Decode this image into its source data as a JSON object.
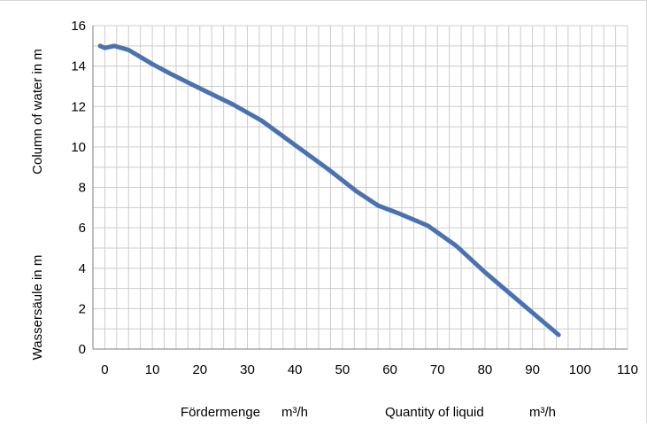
{
  "chart_data": {
    "type": "line",
    "title": "",
    "xlabel_de": "Fördermenge",
    "xlabel_de_unit": "m³/h",
    "xlabel_en": "Quantity of liquid",
    "xlabel_en_unit": "m³/h",
    "ylabel_en": "Column of water in m",
    "ylabel_de": "Wassersäule in m",
    "xlim": [
      0,
      110
    ],
    "ylim": [
      0,
      16
    ],
    "x_ticks": [
      0,
      10,
      20,
      30,
      40,
      50,
      60,
      70,
      80,
      90,
      100,
      110
    ],
    "y_ticks": [
      0,
      2,
      4,
      6,
      8,
      10,
      12,
      14,
      16
    ],
    "x_minor_step": 2.5,
    "y_minor_step": 1,
    "grid": true,
    "legend": "none",
    "series": [
      {
        "color": "#4a72b0",
        "x": [
          -1,
          0,
          2,
          5,
          10,
          14,
          20,
          27,
          33,
          40,
          47,
          53,
          57.5,
          62,
          68,
          74,
          80,
          86,
          91,
          95.5
        ],
        "y": [
          15,
          14.9,
          15,
          14.8,
          14.1,
          13.6,
          12.9,
          12.1,
          11.3,
          10.1,
          8.9,
          7.8,
          7.1,
          6.7,
          6.1,
          5.1,
          3.8,
          2.6,
          1.6,
          0.7
        ]
      }
    ]
  }
}
